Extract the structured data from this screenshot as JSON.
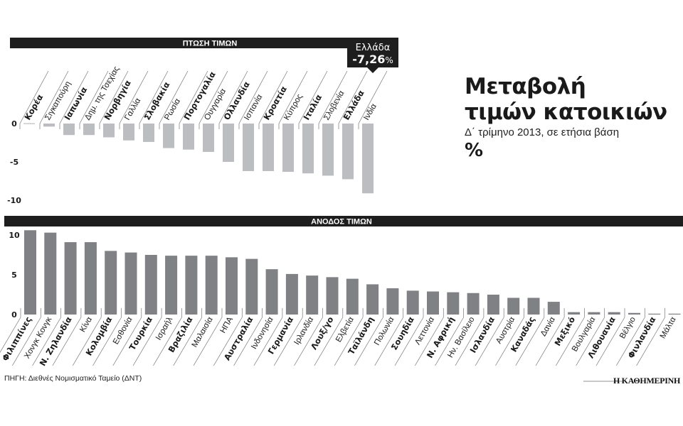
{
  "title": {
    "line1": "Μεταβολή",
    "line2": "τιμών κατοικιών",
    "subtitle": "Δ΄ τρίμηνο 2013, σε ετήσια βάση",
    "unit": "%"
  },
  "callout": {
    "country": "Ελλάδα",
    "value": "-7,26",
    "suffix": "%"
  },
  "source": "ΠΗΓΗ: Διεθνές Νομισματικό Ταμείο (ΔΝΤ)",
  "brand": "Η ΚΑΘΗΜΕΡΙΝΗ",
  "colors": {
    "header_bg": "#1e1e1e",
    "fall_bar": "#bcbdc0",
    "rise_bar": "#808184",
    "text": "#1a1a1a"
  },
  "chart_data": [
    {
      "type": "bar",
      "title": "ΠΤΩΣΗ ΤΙΜΩΝ",
      "xlabel": "",
      "ylabel": "%",
      "ylim": [
        -10,
        0
      ],
      "yticks": [
        0,
        -5,
        -10
      ],
      "grid": false,
      "categories": [
        "Κορέα",
        "Σιγκαπούρη",
        "Ιαπωνία",
        "Δημ. της Τσεχίας",
        "Νορβηγία",
        "Γαλλία",
        "Σλοβακία",
        "Ρωσία",
        "Πορτογαλία",
        "Ουγγαρία",
        "Ολλανδία",
        "Ισπανία",
        "Κροατία",
        "Κύπρος",
        "Ιταλία",
        "Σλοβενία",
        "Ελλάδα",
        "Ινδία"
      ],
      "bold": [
        true,
        false,
        true,
        false,
        true,
        false,
        true,
        false,
        true,
        false,
        true,
        false,
        true,
        false,
        true,
        false,
        true,
        false
      ],
      "values": [
        -0.1,
        -0.4,
        -1.5,
        -1.5,
        -1.8,
        -2.2,
        -2.4,
        -3.2,
        -3.4,
        -3.7,
        -5.0,
        -6.2,
        -6.2,
        -6.3,
        -6.5,
        -6.8,
        -7.26,
        -9.1
      ]
    },
    {
      "type": "bar",
      "title": "ΑΝΟΔΟΣ ΤΙΜΩΝ",
      "xlabel": "",
      "ylabel": "%",
      "ylim": [
        0,
        10
      ],
      "yticks": [
        10,
        5,
        0
      ],
      "grid": false,
      "categories": [
        "Φιλιππίνες",
        "Χονγκ Κονγκ",
        "Ν. Ζηλανδία",
        "Κίνα",
        "Κολομβία",
        "Εσθονία",
        "Τουρκία",
        "Ισραήλ",
        "Βραζιλία",
        "Μαλαισία",
        "ΗΠΑ",
        "Αυστραλία",
        "Ινδονησία",
        "Γερμανία",
        "Ιρλανδία",
        "Λουξ/γο",
        "Ελβετία",
        "Ταϊλάνδη",
        "Πολωνία",
        "Σουηδία",
        "Λεττονία",
        "Ν. Αφρική",
        "Ην. Βασίλειο",
        "Ισλανδία",
        "Αυστρία",
        "Καναδάς",
        "Δανία",
        "Μεξικό",
        "Βουλγαρία",
        "Λιθουανία",
        "Βέλγιο",
        "Φινλανδία",
        "Μάλτα"
      ],
      "bold": [
        true,
        false,
        true,
        false,
        true,
        false,
        true,
        false,
        true,
        false,
        false,
        true,
        false,
        true,
        false,
        true,
        false,
        true,
        false,
        true,
        false,
        true,
        false,
        true,
        false,
        true,
        false,
        true,
        false,
        true,
        false,
        true,
        false
      ],
      "values": [
        10.6,
        10.3,
        9.1,
        9.1,
        8.0,
        7.8,
        7.5,
        7.4,
        7.4,
        7.4,
        7.2,
        7.0,
        5.7,
        5.1,
        4.9,
        4.7,
        4.5,
        3.8,
        3.3,
        3.0,
        2.9,
        2.8,
        2.7,
        2.5,
        2.1,
        2.1,
        1.6,
        0.3,
        0.3,
        0.3,
        0.2,
        0.1,
        0.05
      ]
    }
  ]
}
